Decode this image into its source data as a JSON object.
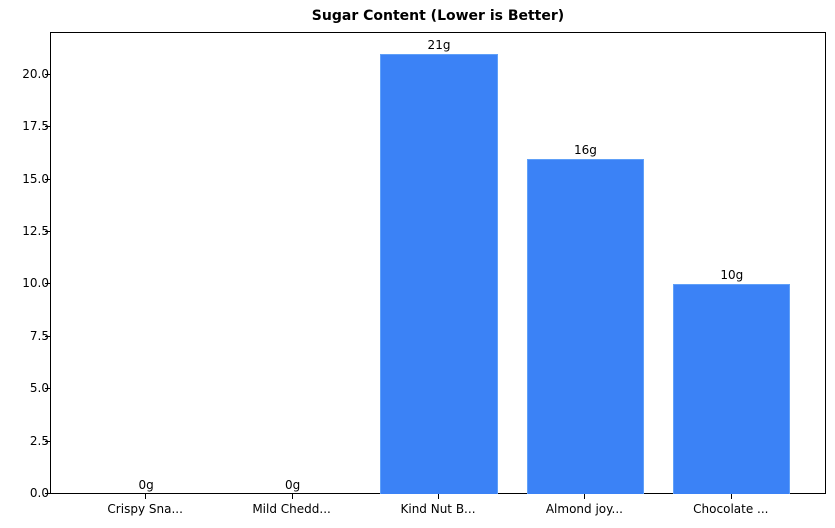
{
  "chart_data": {
    "type": "bar",
    "title": "Sugar Content (Lower is Better)",
    "xlabel": "",
    "ylabel": "",
    "categories": [
      "Crispy Sna...",
      "Mild Chedd...",
      "Kind Nut B...",
      "Almond joy...",
      "Chocolate ..."
    ],
    "values": [
      0,
      0,
      21,
      16,
      10
    ],
    "value_labels": [
      "0g",
      "0g",
      "21g",
      "16g",
      "10g"
    ],
    "ylim": [
      0,
      22.05
    ],
    "yticks": [
      0.0,
      2.5,
      5.0,
      7.5,
      10.0,
      12.5,
      15.0,
      17.5,
      20.0
    ],
    "ytick_labels": [
      "0.0",
      "2.5",
      "5.0",
      "7.5",
      "10.0",
      "12.5",
      "15.0",
      "17.5",
      "20.0"
    ],
    "grid": false,
    "legend": null,
    "bar_color": "#3b82f6",
    "bar_edge_color": "#60a0f8"
  }
}
